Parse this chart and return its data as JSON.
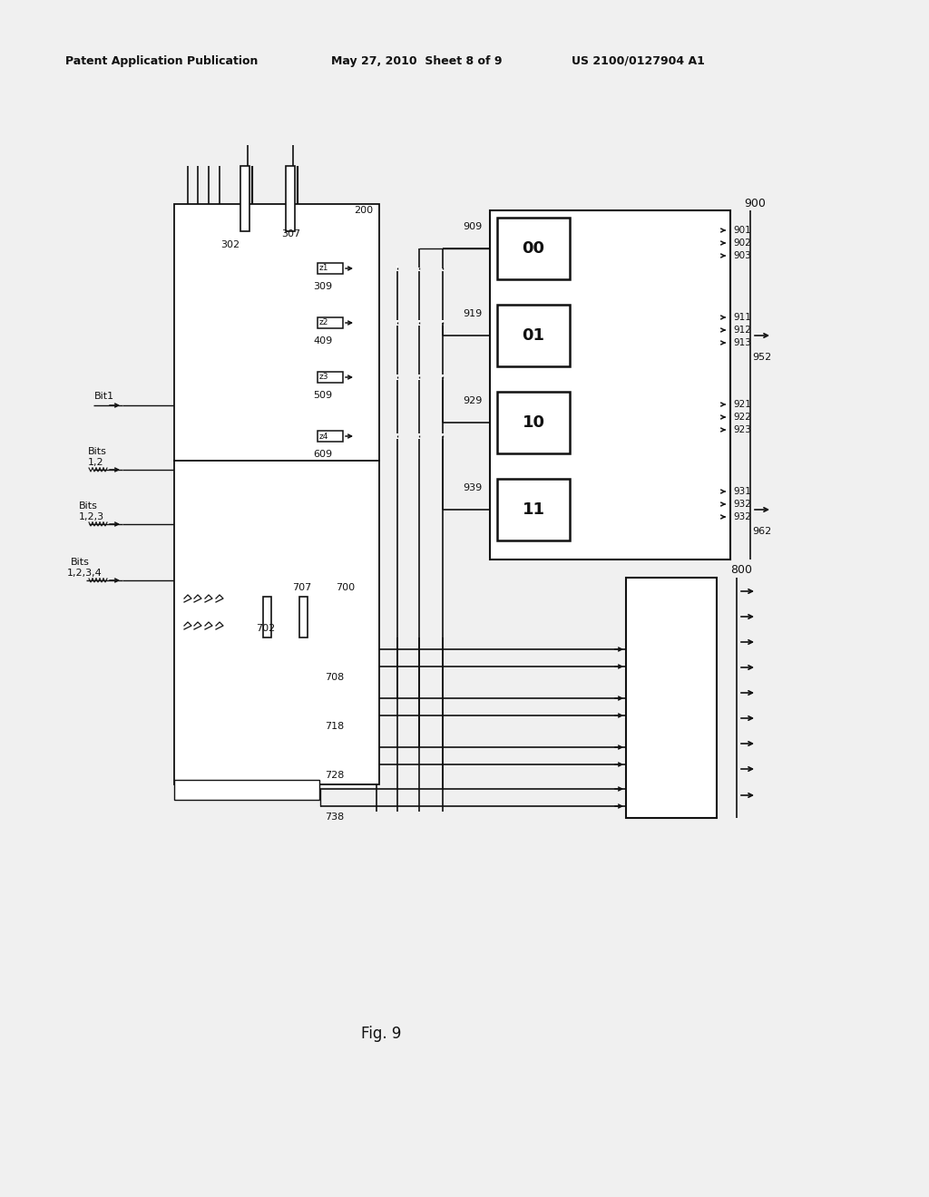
{
  "bg_color": "#f0f0f0",
  "header_left": "Patent Application Publication",
  "header_mid": "May 27, 2010  Sheet 8 of 9",
  "header_right": "US 2100/0127904 A1",
  "fig_label": "Fig. 9",
  "lc": "#111111",
  "tc": "#111111"
}
